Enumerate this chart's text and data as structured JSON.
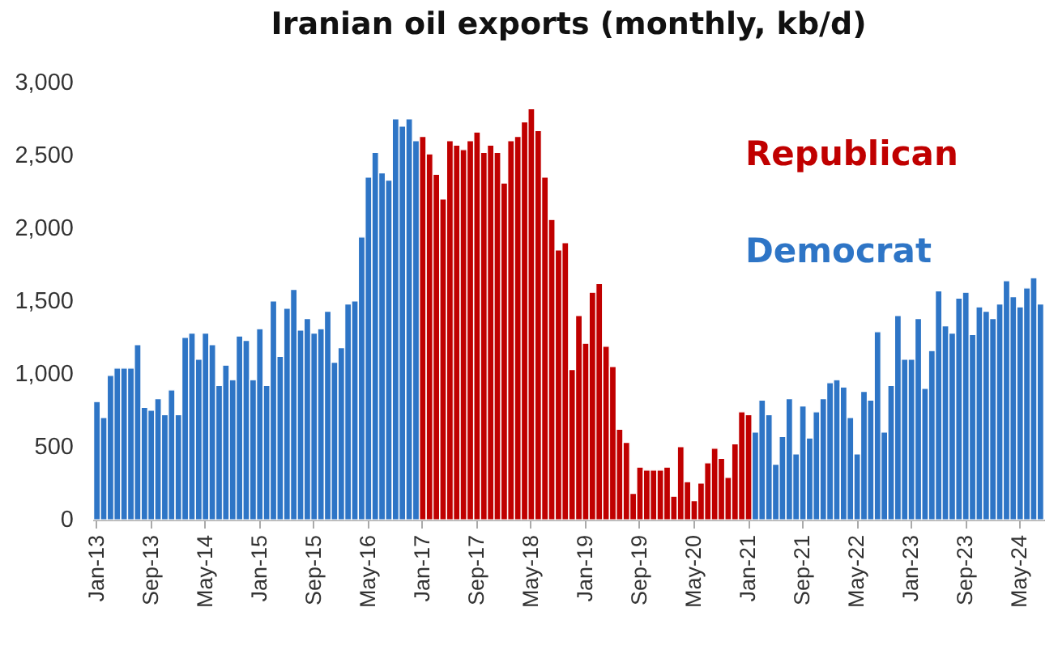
{
  "chart_data": {
    "type": "bar",
    "title": "Iranian oil exports (monthly, kb/d)",
    "legend": "top right",
    "grid": false,
    "categories": [
      "Jan-13",
      null,
      null,
      null,
      null,
      null,
      null,
      null,
      "Sep-13",
      null,
      null,
      null,
      null,
      null,
      null,
      null,
      "May-14",
      null,
      null,
      null,
      null,
      null,
      null,
      null,
      "Jan-15",
      null,
      null,
      null,
      null,
      null,
      null,
      null,
      "Sep-15",
      null,
      null,
      null,
      null,
      null,
      null,
      null,
      "May-16",
      null,
      null,
      null,
      null,
      null,
      null,
      null,
      "Jan-17",
      null,
      null,
      null,
      null,
      null,
      null,
      null,
      "Sep-17",
      null,
      null,
      null,
      null,
      null,
      null,
      null,
      "May-18",
      null,
      null,
      null,
      null,
      null,
      null,
      null,
      "Jan-19",
      null,
      null,
      null,
      null,
      null,
      null,
      null,
      "Sep-19",
      null,
      null,
      null,
      null,
      null,
      null,
      null,
      "May-20",
      null,
      null,
      null,
      null,
      null,
      null,
      null,
      "Jan-21",
      null,
      null,
      null,
      null,
      null,
      null,
      null,
      "Sep-21",
      null,
      null,
      null,
      null,
      null,
      null,
      null,
      "May-22",
      null,
      null,
      null,
      null,
      null,
      null,
      null,
      "Jan-23",
      null,
      null,
      null,
      null,
      null,
      null,
      null,
      "Sep-23",
      null,
      null,
      null,
      null,
      null,
      null,
      null,
      "May-24",
      null,
      null,
      null
    ],
    "ylim": [
      0,
      3000
    ],
    "yticks": [
      {
        "value": 0,
        "label": "0"
      },
      {
        "value": 500,
        "label": "500"
      },
      {
        "value": 1000,
        "label": "1,000"
      },
      {
        "value": 1500,
        "label": "1,500"
      },
      {
        "value": 2000,
        "label": "2,000"
      },
      {
        "value": 2500,
        "label": "2,500"
      },
      {
        "value": 3000,
        "label": "3,000"
      }
    ],
    "series": [
      {
        "name": "Republican",
        "color": "#c00000",
        "values": [
          null,
          null,
          null,
          null,
          null,
          null,
          null,
          null,
          null,
          null,
          null,
          null,
          null,
          null,
          null,
          null,
          null,
          null,
          null,
          null,
          null,
          null,
          null,
          null,
          null,
          null,
          null,
          null,
          null,
          null,
          null,
          null,
          null,
          null,
          null,
          null,
          null,
          null,
          null,
          null,
          null,
          null,
          null,
          null,
          null,
          null,
          null,
          null,
          2630,
          2510,
          2370,
          2200,
          2600,
          2570,
          2540,
          2600,
          2660,
          2520,
          2570,
          2520,
          2310,
          2600,
          2630,
          2730,
          2820,
          2670,
          2350,
          2060,
          1850,
          1900,
          1030,
          1400,
          1210,
          1560,
          1620,
          1190,
          1050,
          620,
          530,
          180,
          360,
          340,
          340,
          340,
          360,
          160,
          500,
          260,
          130,
          250,
          390,
          490,
          420,
          290,
          520,
          740,
          720,
          null,
          null,
          null,
          null,
          null,
          null,
          null,
          null,
          null,
          null,
          null,
          null,
          null,
          null,
          null,
          null,
          null,
          null,
          null,
          null,
          null,
          null,
          null,
          null,
          null,
          null,
          null,
          null,
          null,
          null,
          null,
          null,
          null,
          null,
          null,
          null,
          null,
          null,
          null,
          null,
          null,
          null,
          null
        ]
      },
      {
        "name": "Democrat",
        "color": "#2e75c6",
        "values": [
          810,
          700,
          990,
          1040,
          1040,
          1040,
          1200,
          770,
          750,
          830,
          720,
          890,
          720,
          1250,
          1280,
          1100,
          1280,
          1200,
          920,
          1060,
          960,
          1260,
          1230,
          960,
          1310,
          920,
          1500,
          1120,
          1450,
          1580,
          1300,
          1380,
          1280,
          1310,
          1430,
          1080,
          1180,
          1480,
          1500,
          1940,
          2350,
          2520,
          2380,
          2330,
          2750,
          2700,
          2750,
          2600,
          null,
          null,
          null,
          null,
          null,
          null,
          null,
          null,
          null,
          null,
          null,
          null,
          null,
          null,
          null,
          null,
          null,
          null,
          null,
          null,
          null,
          null,
          null,
          null,
          null,
          null,
          null,
          null,
          null,
          null,
          null,
          null,
          null,
          null,
          null,
          null,
          null,
          null,
          null,
          null,
          null,
          null,
          null,
          null,
          null,
          null,
          null,
          null,
          null,
          600,
          820,
          720,
          380,
          570,
          830,
          450,
          780,
          560,
          740,
          830,
          940,
          960,
          910,
          700,
          450,
          880,
          820,
          1290,
          600,
          920,
          1400,
          1100,
          1100,
          1380,
          900,
          1160,
          1570,
          1330,
          1280,
          1520,
          1560,
          1270,
          1460,
          1430,
          1380,
          1480,
          1640,
          1530,
          1460,
          1590,
          1660,
          1480
        ]
      }
    ]
  }
}
